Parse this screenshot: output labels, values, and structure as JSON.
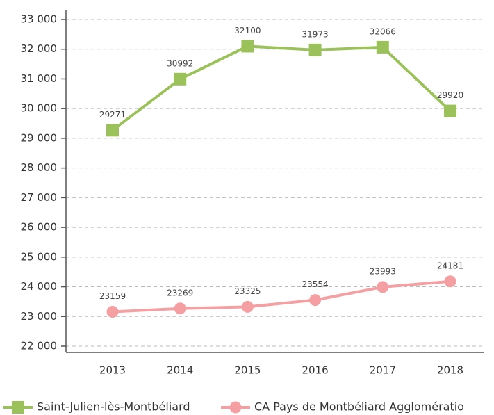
{
  "chart_data": {
    "type": "line",
    "categories": [
      "2013",
      "2014",
      "2015",
      "2016",
      "2017",
      "2018"
    ],
    "series": [
      {
        "name": "Saint-Julien-lès-Montbéliard",
        "color": "#9bc15a",
        "marker": "square",
        "values": [
          29271,
          30992,
          32100,
          31973,
          32066,
          29920
        ]
      },
      {
        "name": "CA Pays de Montbéliard Agglomératio",
        "color": "#f4a0a3",
        "marker": "circle",
        "values": [
          23159,
          23269,
          23325,
          23554,
          23993,
          24181
        ]
      }
    ],
    "ylim": [
      22000,
      33000
    ],
    "yticks": [
      {
        "value": 22000,
        "label": "22 000"
      },
      {
        "value": 23000,
        "label": "23 000"
      },
      {
        "value": 24000,
        "label": "24 000"
      },
      {
        "value": 25000,
        "label": "25 000"
      },
      {
        "value": 26000,
        "label": "26 000"
      },
      {
        "value": 27000,
        "label": "27 000"
      },
      {
        "value": 28000,
        "label": "28 000"
      },
      {
        "value": 29000,
        "label": "29 000"
      },
      {
        "value": 30000,
        "label": "30 000"
      },
      {
        "value": 31000,
        "label": "31 000"
      },
      {
        "value": 32000,
        "label": "32 000"
      },
      {
        "value": 33000,
        "label": "33 000"
      }
    ],
    "grid": true,
    "legend": "bottom"
  }
}
